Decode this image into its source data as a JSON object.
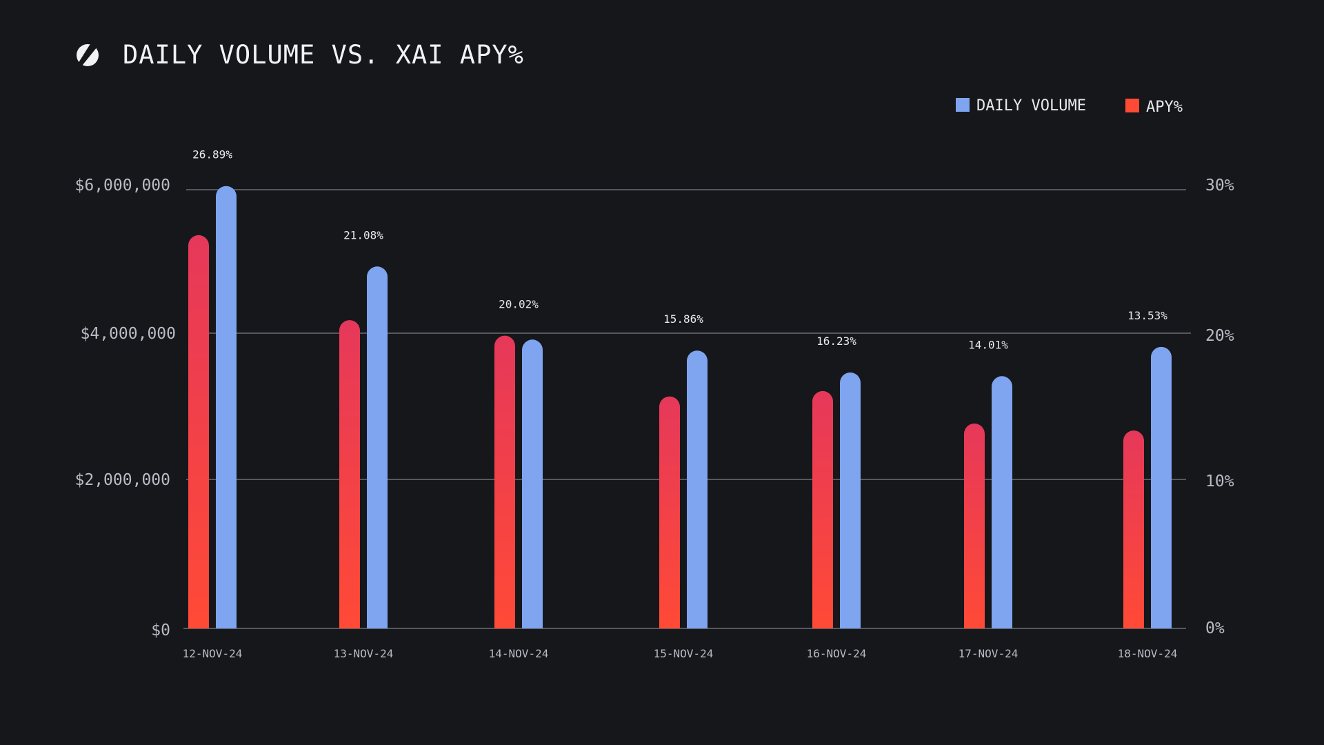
{
  "header": {
    "title": "DAILY VOLUME VS. XAI APY%",
    "logo_icon": "s-logo-icon"
  },
  "colors": {
    "background": "#16171b",
    "volume": "#7fa4f0",
    "apy_top": "#e6385a",
    "apy_bottom": "#ff4a36",
    "legend_apy": "#ff4a36",
    "grid": "#7c7f88"
  },
  "chart_data": {
    "type": "bar",
    "title": "DAILY VOLUME VS. XAI APY%",
    "xlabel": "",
    "ylabel": "",
    "legend_position": "top-right",
    "categories": [
      "12-NOV-24",
      "13-NOV-24",
      "14-NOV-24",
      "15-NOV-24",
      "16-NOV-24",
      "17-NOV-24",
      "18-NOV-24"
    ],
    "series": [
      {
        "name": "DAILY VOLUME",
        "axis": "left",
        "values": [
          6050000,
          4950000,
          3950000,
          3800000,
          3500000,
          3450000,
          3850000
        ]
      },
      {
        "name": "APY%",
        "axis": "right",
        "values": [
          26.89,
          21.08,
          20.02,
          15.86,
          16.23,
          14.01,
          13.53
        ],
        "data_labels": [
          "26.89%",
          "21.08%",
          "20.02%",
          "15.86%",
          "16.23%",
          "14.01%",
          "13.53%"
        ]
      }
    ],
    "y_left": {
      "range": [
        0,
        6000000
      ],
      "ticks": [
        0,
        2000000,
        4000000,
        6000000
      ],
      "tick_labels": [
        "$0",
        "$2,000,000",
        "$4,000,000",
        "$6,000,000"
      ]
    },
    "y_right": {
      "range": [
        0,
        30
      ],
      "ticks": [
        0,
        10,
        20,
        30
      ],
      "tick_labels": [
        "0%",
        "10%",
        "20%",
        "30%"
      ]
    },
    "grid": true
  }
}
